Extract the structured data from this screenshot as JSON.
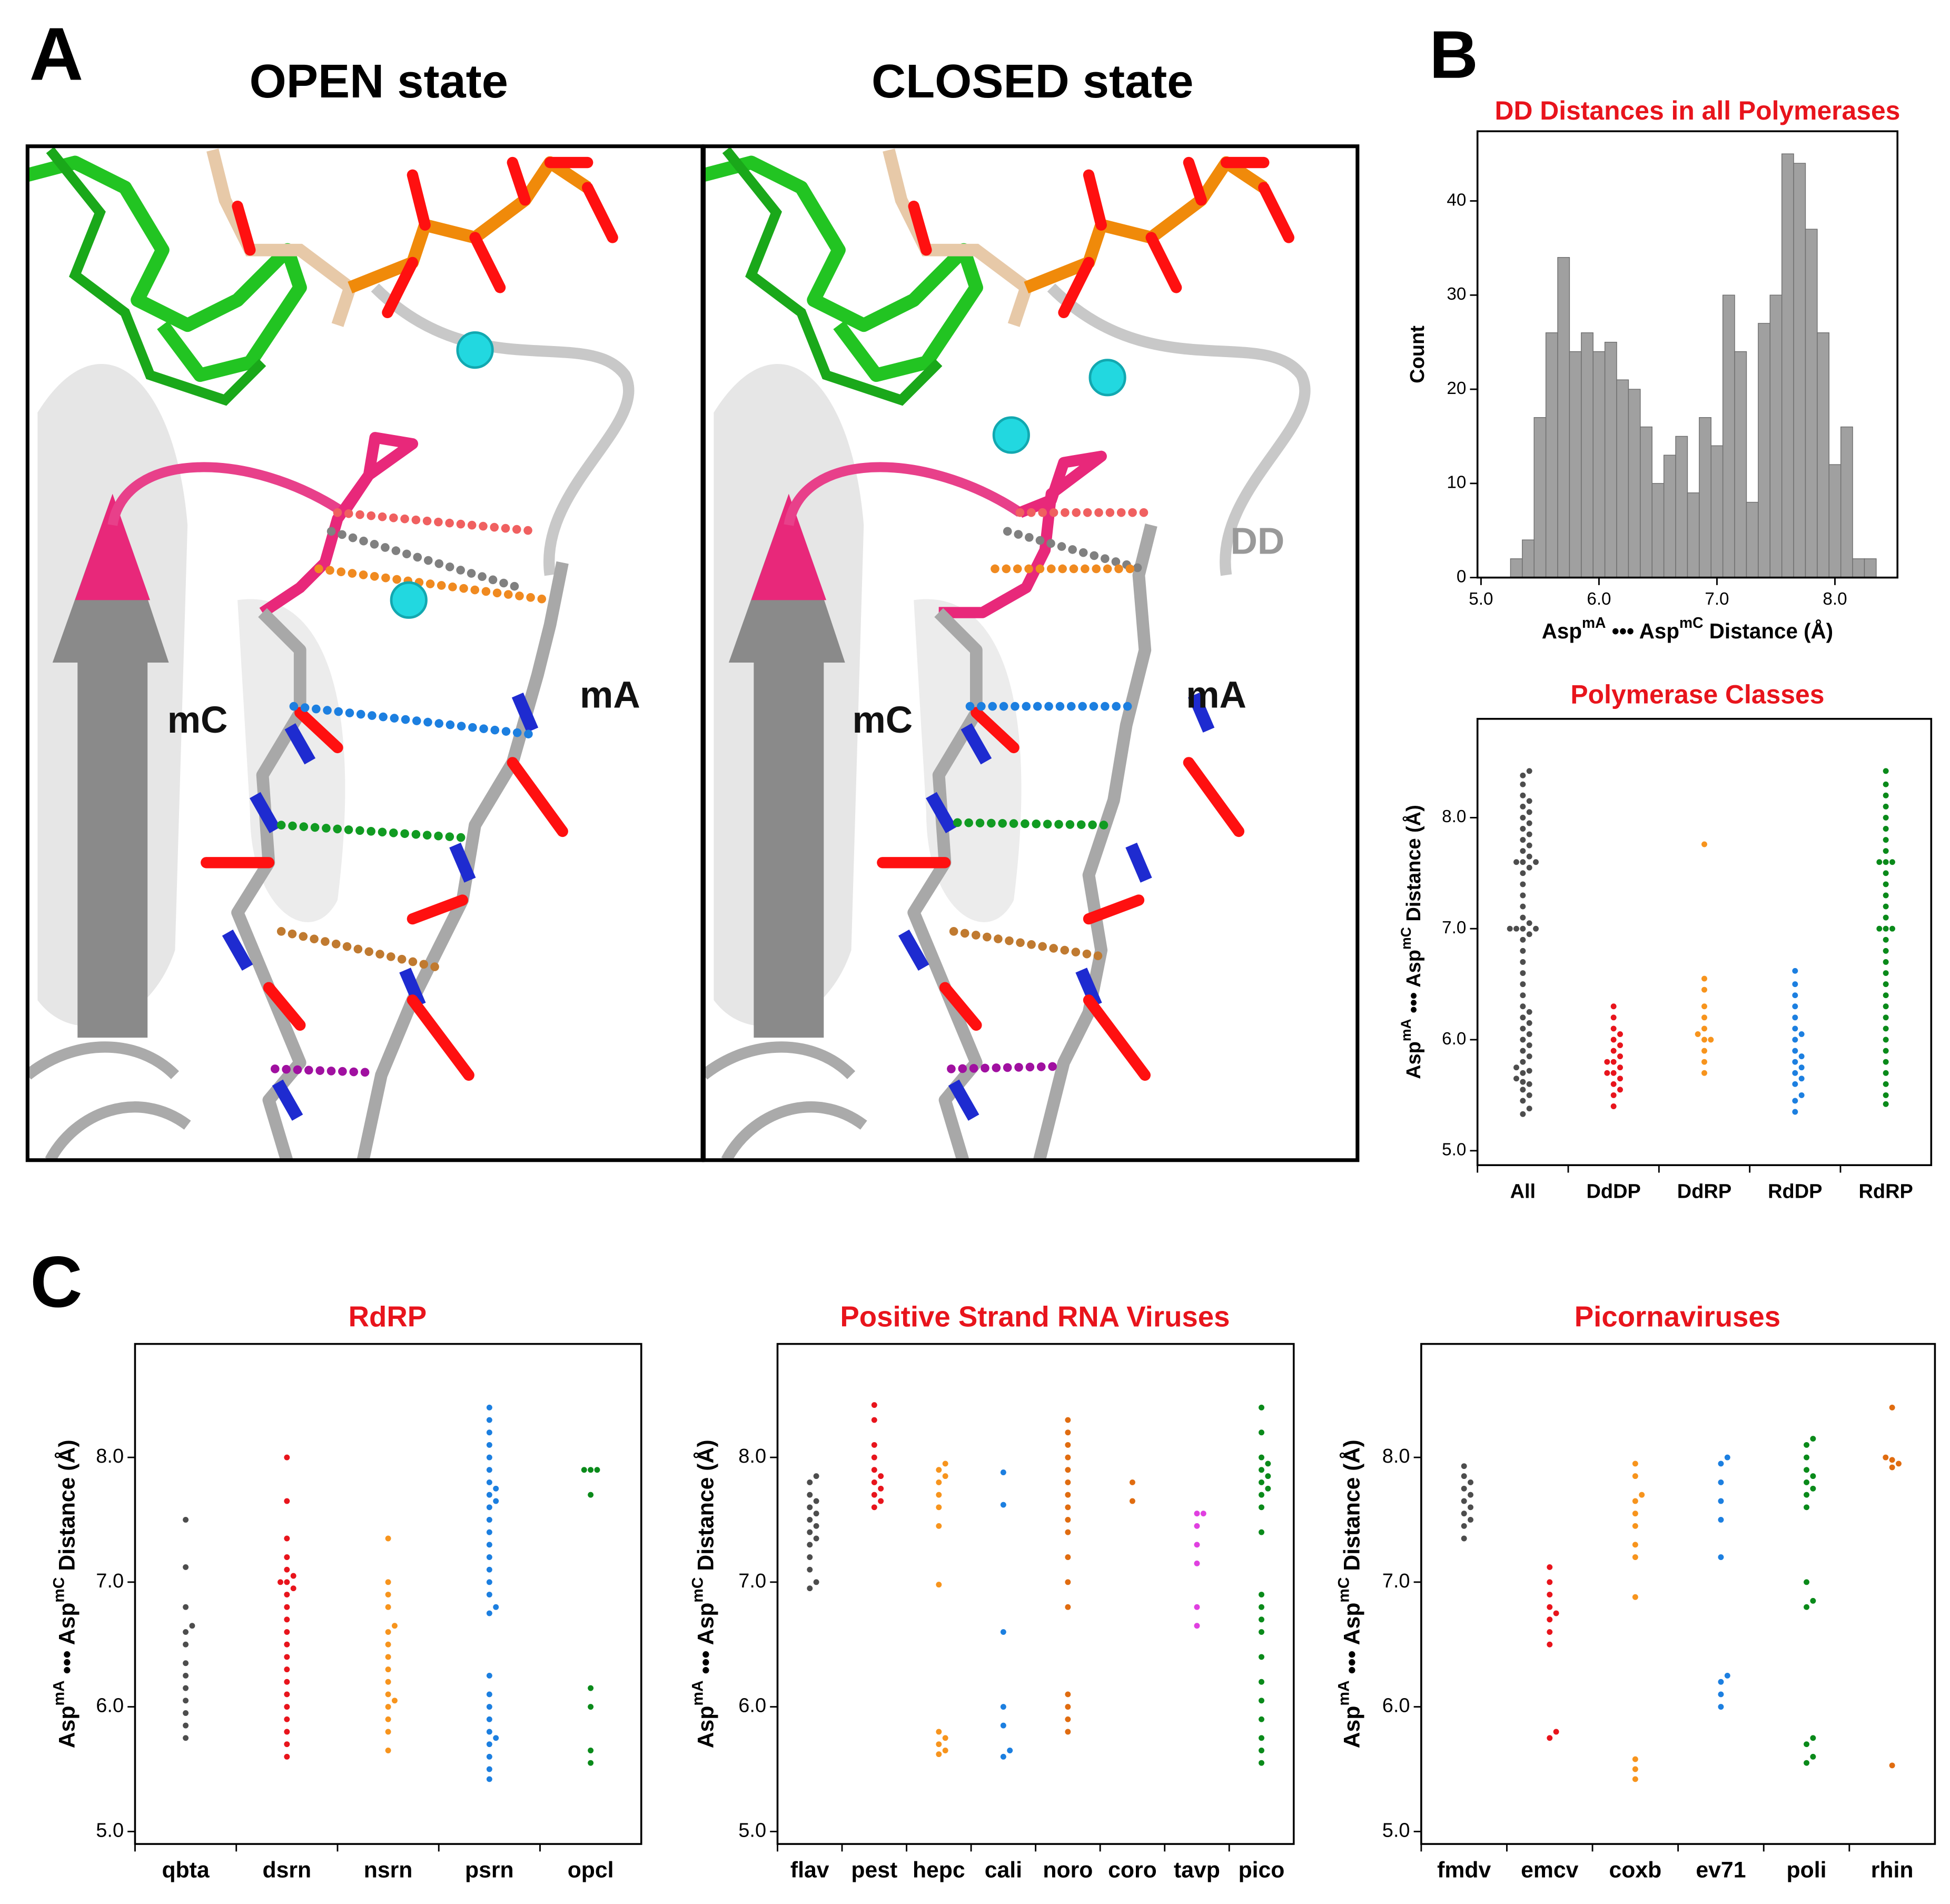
{
  "panel_labels": [
    "A",
    "B",
    "C"
  ],
  "panel_a": {
    "open_title": "OPEN state",
    "closed_title": "CLOSED state",
    "open_labels": [
      "mC",
      "mA"
    ],
    "closed_labels": [
      "mC",
      "mA",
      "DD"
    ]
  },
  "chart_data": [
    {
      "type": "histogram",
      "title": "DD Distances in all Polymerases",
      "title_color": "#e8141c",
      "color": "#a0a0a0",
      "xlabel_parts": [
        "Asp",
        "mA",
        " ••• Asp",
        "mC",
        " Distance (Å)"
      ],
      "ylabel": "Count",
      "bins": [
        5.25,
        5.35,
        5.45,
        5.55,
        5.65,
        5.75,
        5.85,
        5.95,
        6.05,
        6.15,
        6.25,
        6.35,
        6.45,
        6.55,
        6.65,
        6.75,
        6.85,
        6.95,
        7.05,
        7.15,
        7.25,
        7.35,
        7.45,
        7.55,
        7.65,
        7.75,
        7.85,
        7.95,
        8.05,
        8.15,
        8.25,
        8.35
      ],
      "counts": [
        2,
        4,
        17,
        26,
        34,
        24,
        26,
        24,
        25,
        21,
        20,
        16,
        10,
        13,
        15,
        9,
        17,
        14,
        30,
        24,
        8,
        27,
        30,
        45,
        44,
        37,
        26,
        12,
        16,
        2,
        2
      ],
      "xlim": [
        4.97,
        8.53
      ],
      "xticks": [
        {
          "value": 5,
          "label": "5.0"
        },
        {
          "value": 6,
          "label": "6.0"
        },
        {
          "value": 7,
          "label": "7.0"
        },
        {
          "value": 8,
          "label": "8.0"
        }
      ],
      "ylim": [
        0,
        47.4
      ],
      "yticks": [
        0,
        10,
        20,
        30,
        40
      ]
    },
    {
      "type": "strip",
      "title": "Polymerase Classes",
      "title_color": "#e8141c",
      "ylabel_parts": [
        "Asp",
        "mA",
        " ••• Asp",
        "mC",
        " Distance (Å)"
      ],
      "ylim": [
        4.87,
        8.89
      ],
      "yticks": [
        {
          "value": 5,
          "label": "5.0"
        },
        {
          "value": 6,
          "label": "6.0"
        },
        {
          "value": 7,
          "label": "7.0"
        },
        {
          "value": 8,
          "label": "8.0"
        }
      ],
      "groups": [
        {
          "name": "All",
          "color": "#4d4d4d",
          "values": [
            5.33,
            5.38,
            5.45,
            5.5,
            5.55,
            5.6,
            5.62,
            5.65,
            5.7,
            5.72,
            5.75,
            5.8,
            5.85,
            5.9,
            5.95,
            6.0,
            6.05,
            6.1,
            6.15,
            6.2,
            6.25,
            6.3,
            6.4,
            6.5,
            6.6,
            6.7,
            6.8,
            6.9,
            6.95,
            7.0,
            7.0,
            7.0,
            7.0,
            7.05,
            7.1,
            7.2,
            7.3,
            7.4,
            7.5,
            7.55,
            7.6,
            7.6,
            7.6,
            7.65,
            7.7,
            7.75,
            7.8,
            7.85,
            7.9,
            7.95,
            8.0,
            8.05,
            8.1,
            8.15,
            8.2,
            8.3,
            8.38,
            8.42
          ]
        },
        {
          "name": "DdDP",
          "color": "#e8141c",
          "values": [
            5.4,
            5.5,
            5.55,
            5.6,
            5.65,
            5.7,
            5.7,
            5.75,
            5.8,
            5.8,
            5.85,
            5.9,
            5.95,
            6.0,
            6.05,
            6.1,
            6.2,
            6.3
          ]
        },
        {
          "name": "DdRP",
          "color": "#f7941d",
          "values": [
            5.7,
            5.8,
            5.9,
            6.0,
            6.0,
            6.05,
            6.1,
            6.2,
            6.3,
            6.45,
            6.55,
            7.76
          ]
        },
        {
          "name": "RdDP",
          "color": "#1c7fe0",
          "values": [
            5.35,
            5.45,
            5.5,
            5.6,
            5.65,
            5.7,
            5.75,
            5.8,
            5.85,
            5.9,
            6.0,
            6.05,
            6.1,
            6.2,
            6.3,
            6.4,
            6.5,
            6.62
          ]
        },
        {
          "name": "RdRP",
          "color": "#0a8a1a",
          "values": [
            5.42,
            5.5,
            5.6,
            5.7,
            5.8,
            5.9,
            6.0,
            6.1,
            6.2,
            6.3,
            6.4,
            6.5,
            6.6,
            6.7,
            6.8,
            6.9,
            7.0,
            7.0,
            7.0,
            7.1,
            7.2,
            7.3,
            7.4,
            7.5,
            7.6,
            7.6,
            7.6,
            7.7,
            7.8,
            7.9,
            8.0,
            8.1,
            8.2,
            8.3,
            8.42
          ]
        }
      ]
    },
    {
      "type": "strip",
      "title": "RdRP",
      "title_color": "#e8141c",
      "ylabel_parts": [
        "Asp",
        "mA",
        " ••• Asp",
        "mC",
        " Distance (Å)"
      ],
      "ylim": [
        4.9,
        8.91
      ],
      "yticks": [
        {
          "value": 5,
          "label": "5.0"
        },
        {
          "value": 6,
          "label": "6.0"
        },
        {
          "value": 7,
          "label": "7.0"
        },
        {
          "value": 8,
          "label": "8.0"
        }
      ],
      "groups": [
        {
          "name": "qbta",
          "color": "#4d4d4d",
          "values": [
            5.75,
            5.85,
            5.95,
            6.05,
            6.15,
            6.25,
            6.35,
            6.5,
            6.6,
            6.65,
            6.8,
            7.12,
            7.5
          ]
        },
        {
          "name": "dsrn",
          "color": "#e8141c",
          "values": [
            5.6,
            5.7,
            5.8,
            5.9,
            6.0,
            6.1,
            6.2,
            6.3,
            6.4,
            6.5,
            6.6,
            6.7,
            6.8,
            6.9,
            6.95,
            7.0,
            7.0,
            7.05,
            7.1,
            7.2,
            7.35,
            7.65,
            8.0
          ]
        },
        {
          "name": "nsrn",
          "color": "#f7941d",
          "values": [
            5.65,
            5.8,
            5.9,
            6.0,
            6.05,
            6.1,
            6.2,
            6.3,
            6.4,
            6.5,
            6.6,
            6.65,
            6.8,
            6.9,
            7.0,
            7.35
          ]
        },
        {
          "name": "psrn",
          "color": "#1c7fe0",
          "values": [
            5.42,
            5.5,
            5.6,
            5.7,
            5.75,
            5.8,
            5.9,
            6.0,
            6.1,
            6.25,
            6.75,
            6.8,
            6.9,
            7.0,
            7.1,
            7.2,
            7.3,
            7.4,
            7.5,
            7.6,
            7.65,
            7.7,
            7.75,
            7.8,
            7.9,
            8.0,
            8.1,
            8.2,
            8.3,
            8.4
          ]
        },
        {
          "name": "opcl",
          "color": "#0a8a1a",
          "values": [
            5.55,
            5.65,
            6.0,
            6.15,
            7.7,
            7.9,
            7.9,
            7.9
          ]
        }
      ]
    },
    {
      "type": "strip",
      "title": "Positive Strand RNA Viruses",
      "title_color": "#e8141c",
      "ylabel_parts": [
        "Asp",
        "mA",
        " ••• Asp",
        "mC",
        " Distance (Å)"
      ],
      "ylim": [
        4.9,
        8.91
      ],
      "yticks": [
        {
          "value": 5,
          "label": "5.0"
        },
        {
          "value": 6,
          "label": "6.0"
        },
        {
          "value": 7,
          "label": "7.0"
        },
        {
          "value": 8,
          "label": "8.0"
        }
      ],
      "groups": [
        {
          "name": "flav",
          "color": "#4d4d4d",
          "values": [
            6.95,
            7.0,
            7.1,
            7.2,
            7.3,
            7.35,
            7.4,
            7.45,
            7.5,
            7.55,
            7.6,
            7.65,
            7.7,
            7.8,
            7.85
          ]
        },
        {
          "name": "pest",
          "color": "#e8141c",
          "values": [
            7.6,
            7.65,
            7.7,
            7.75,
            7.8,
            7.85,
            7.9,
            8.0,
            8.1,
            8.3,
            8.42
          ]
        },
        {
          "name": "hepc",
          "color": "#f7941d",
          "values": [
            5.62,
            5.65,
            5.7,
            5.75,
            5.8,
            6.98,
            7.45,
            7.6,
            7.7,
            7.8,
            7.85,
            7.9,
            7.95
          ]
        },
        {
          "name": "cali",
          "color": "#1c7fe0",
          "values": [
            5.6,
            5.65,
            5.85,
            6.0,
            6.6,
            7.62,
            7.88
          ]
        },
        {
          "name": "noro",
          "color": "#e06c10",
          "values": [
            5.8,
            5.9,
            6.0,
            6.1,
            6.8,
            7.0,
            7.2,
            7.4,
            7.5,
            7.6,
            7.7,
            7.8,
            7.9,
            8.0,
            8.1,
            8.2,
            8.3
          ]
        },
        {
          "name": "coro",
          "color": "#e06c10",
          "values": [
            7.65,
            7.8
          ]
        },
        {
          "name": "tavp",
          "color": "#e040e0",
          "values": [
            6.65,
            6.8,
            7.15,
            7.3,
            7.45,
            7.55,
            7.55
          ]
        },
        {
          "name": "pico",
          "color": "#0a8a1a",
          "values": [
            5.55,
            5.65,
            5.75,
            5.9,
            6.05,
            6.2,
            6.4,
            6.6,
            6.7,
            6.8,
            6.9,
            7.4,
            7.6,
            7.7,
            7.75,
            7.8,
            7.85,
            7.9,
            7.95,
            8.0,
            8.2,
            8.4
          ]
        }
      ]
    },
    {
      "type": "strip",
      "title": "Picornaviruses",
      "title_color": "#e8141c",
      "ylabel_parts": [
        "Asp",
        "mA",
        " ••• Asp",
        "mC",
        " Distance (Å)"
      ],
      "ylim": [
        4.9,
        8.91
      ],
      "yticks": [
        {
          "value": 5,
          "label": "5.0"
        },
        {
          "value": 6,
          "label": "6.0"
        },
        {
          "value": 7,
          "label": "7.0"
        },
        {
          "value": 8,
          "label": "8.0"
        }
      ],
      "groups": [
        {
          "name": "fmdv",
          "color": "#4d4d4d",
          "values": [
            7.35,
            7.45,
            7.5,
            7.55,
            7.6,
            7.65,
            7.7,
            7.75,
            7.8,
            7.85,
            7.93
          ]
        },
        {
          "name": "emcv",
          "color": "#e8141c",
          "values": [
            5.75,
            5.8,
            6.5,
            6.6,
            6.7,
            6.75,
            6.8,
            6.9,
            7.0,
            7.12
          ]
        },
        {
          "name": "coxb",
          "color": "#f7941d",
          "values": [
            5.42,
            5.5,
            5.58,
            6.88,
            7.2,
            7.3,
            7.45,
            7.55,
            7.65,
            7.7,
            7.85,
            7.95
          ]
        },
        {
          "name": "ev71",
          "color": "#1c7fe0",
          "values": [
            6.0,
            6.1,
            6.2,
            6.25,
            7.2,
            7.5,
            7.65,
            7.8,
            7.95,
            8.0
          ]
        },
        {
          "name": "poli",
          "color": "#0a8a1a",
          "values": [
            5.55,
            5.6,
            5.7,
            5.75,
            6.8,
            6.85,
            7.0,
            7.6,
            7.7,
            7.75,
            7.8,
            7.85,
            7.9,
            8.0,
            8.1,
            8.15
          ]
        },
        {
          "name": "rhin",
          "color": "#e06c10",
          "values": [
            5.53,
            7.92,
            7.95,
            7.98,
            8.0,
            8.4
          ]
        }
      ]
    }
  ]
}
